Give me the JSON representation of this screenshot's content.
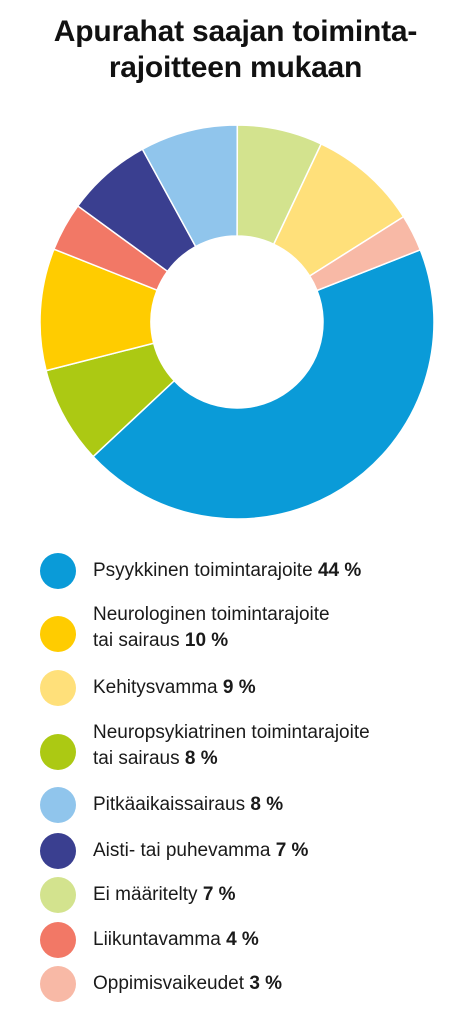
{
  "chart_data": {
    "type": "pie",
    "title_lines": [
      "Apurahat saajan toiminta-",
      "rajoitteen mukaan"
    ],
    "unit": "%",
    "slices": [
      {
        "label_lines": [
          "Psyykkinen toimintarajoite"
        ],
        "value": 44,
        "value_label": "44 %",
        "color": "#0a9bd8"
      },
      {
        "label_lines": [
          "Neurologinen toimintarajoite",
          "tai sairaus"
        ],
        "value": 10,
        "value_label": "10 %",
        "color": "#ffcc00"
      },
      {
        "label_lines": [
          "Kehitysvamma"
        ],
        "value": 9,
        "value_label": "9 %",
        "color": "#ffe07a"
      },
      {
        "label_lines": [
          "Neuropsykiatrinen toimintarajoite",
          "tai sairaus"
        ],
        "value": 8,
        "value_label": "8 %",
        "color": "#acc913"
      },
      {
        "label_lines": [
          "Pitkäaikaissairaus"
        ],
        "value": 8,
        "value_label": "8 %",
        "color": "#90c5ec"
      },
      {
        "label_lines": [
          "Aisti- tai puhevamma"
        ],
        "value": 7,
        "value_label": "7 %",
        "color": "#3a3f90"
      },
      {
        "label_lines": [
          "Ei määritelty"
        ],
        "value": 7,
        "value_label": "7 %",
        "color": "#d3e38e"
      },
      {
        "label_lines": [
          "Liikuntavamma"
        ],
        "value": 4,
        "value_label": "4 %",
        "color": "#f27866"
      },
      {
        "label_lines": [
          "Oppimisvaikeudet"
        ],
        "value": 3,
        "value_label": "3 %",
        "color": "#f8b9a6"
      }
    ],
    "chart_order": [
      0,
      3,
      1,
      7,
      5,
      4,
      6,
      2,
      8
    ],
    "legend_position": "bottom"
  }
}
